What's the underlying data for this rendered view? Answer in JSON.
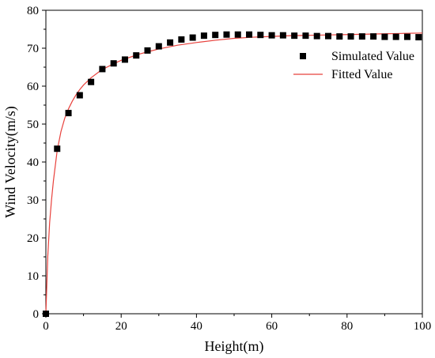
{
  "chart_data": {
    "type": "scatter",
    "title": "",
    "xlabel": "Height(m)",
    "ylabel": "Wind Velocity(m/s)",
    "xlim": [
      0,
      100
    ],
    "ylim": [
      0,
      80
    ],
    "xticks": [
      0,
      20,
      40,
      60,
      80,
      100
    ],
    "yticks": [
      0,
      10,
      20,
      30,
      40,
      50,
      60,
      70,
      80
    ],
    "grid": false,
    "legend_position": "right",
    "series": [
      {
        "name": "Simulated Value",
        "kind": "scatter",
        "marker": "square",
        "color": "#000000",
        "x": [
          0,
          3,
          6,
          9,
          12,
          15,
          18,
          21,
          24,
          27,
          30,
          33,
          36,
          39,
          42,
          45,
          48,
          51,
          54,
          57,
          60,
          63,
          66,
          69,
          72,
          75,
          78,
          81,
          84,
          87,
          90,
          93,
          96,
          99
        ],
        "y": [
          0,
          43.5,
          52.9,
          57.6,
          61.1,
          64.5,
          66,
          67,
          68.1,
          69.4,
          70.5,
          71.5,
          72.3,
          72.8,
          73.3,
          73.5,
          73.6,
          73.6,
          73.6,
          73.5,
          73.4,
          73.4,
          73.3,
          73.3,
          73.2,
          73.2,
          73.1,
          73.1,
          73.1,
          73.1,
          73,
          73,
          73,
          72.9
        ]
      },
      {
        "name": "Fitted Value",
        "kind": "line",
        "color": "#e8413c",
        "x": [
          0,
          0.5,
          1,
          1.5,
          2,
          3,
          4,
          5,
          6,
          7,
          8,
          9,
          10,
          12,
          14,
          16,
          18,
          20,
          22,
          25,
          28,
          30,
          35,
          40,
          45,
          50,
          55,
          60,
          65,
          70,
          75,
          80,
          85,
          90,
          95,
          100
        ],
        "y": [
          0,
          15,
          24,
          30,
          35,
          43,
          48,
          51.5,
          54,
          56,
          57.7,
          59.1,
          60.3,
          62.2,
          63.7,
          64.9,
          65.9,
          66.8,
          67.5,
          68.5,
          69.3,
          69.8,
          70.8,
          71.5,
          72.1,
          72.6,
          72.9,
          73.1,
          73.3,
          73.4,
          73.5,
          73.6,
          73.7,
          73.8,
          73.9,
          74
        ]
      }
    ]
  }
}
